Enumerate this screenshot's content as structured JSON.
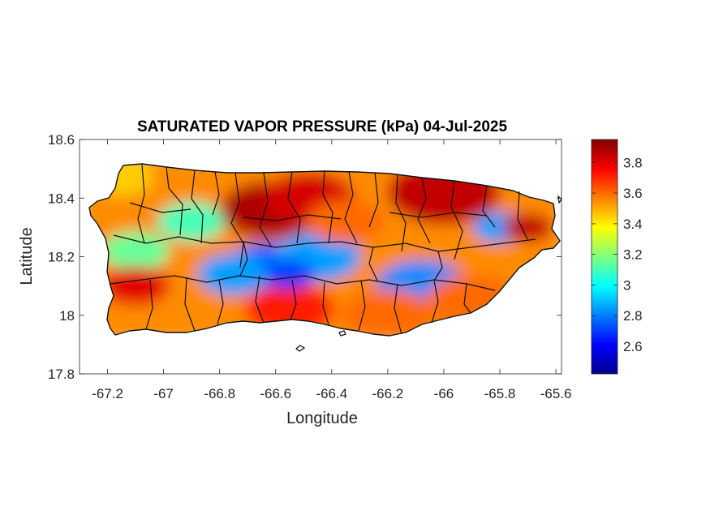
{
  "figure": {
    "title": "SATURATED VAPOR PRESSURE (kPa) 04-Jul-2025"
  },
  "chart_data": {
    "type": "heatmap",
    "title": "SATURATED VAPOR PRESSURE (kPa) 04-Jul-2025",
    "xlabel": "Longitude",
    "ylabel": "Latitude",
    "xlim": [
      -67.3,
      -65.58
    ],
    "ylim": [
      17.8,
      18.6
    ],
    "xticks": [
      -67.2,
      -67,
      -66.8,
      -66.6,
      -66.4,
      -66.2,
      -66,
      -65.8,
      -65.6
    ],
    "xtick_labels": [
      "-67.2",
      "-67",
      "-66.8",
      "-66.6",
      "-66.4",
      "-66.2",
      "-66",
      "-65.8",
      "-65.6"
    ],
    "yticks": [
      17.8,
      18,
      18.2,
      18.4,
      18.6
    ],
    "ytick_labels": [
      "17.8",
      "18",
      "18.2",
      "18.4",
      "18.6"
    ],
    "colorbar": {
      "colormap": "jet",
      "range": [
        2.42,
        3.95
      ],
      "ticks": [
        2.6,
        2.8,
        3,
        3.2,
        3.4,
        3.6,
        3.8
      ],
      "tick_labels": [
        "2.6",
        "2.8",
        "3",
        "3.2",
        "3.4",
        "3.6",
        "3.8"
      ]
    },
    "grid": false,
    "field_samples": [
      {
        "lon": -66.62,
        "lat": 18.16,
        "value": 2.75
      },
      {
        "lon": -66.75,
        "lat": 18.14,
        "value": 2.85
      },
      {
        "lon": -66.45,
        "lat": 18.2,
        "value": 2.85
      },
      {
        "lon": -66.08,
        "lat": 18.1,
        "value": 2.82
      },
      {
        "lon": -65.8,
        "lat": 18.3,
        "value": 2.85
      },
      {
        "lon": -66.9,
        "lat": 18.32,
        "value": 3.1
      },
      {
        "lon": -67.1,
        "lat": 18.22,
        "value": 3.15
      },
      {
        "lon": -66.62,
        "lat": 18.36,
        "value": 3.88
      },
      {
        "lon": -66.48,
        "lat": 18.4,
        "value": 3.82
      },
      {
        "lon": -66.0,
        "lat": 18.42,
        "value": 3.85
      },
      {
        "lon": -65.7,
        "lat": 18.3,
        "value": 3.85
      },
      {
        "lon": -67.1,
        "lat": 18.1,
        "value": 3.8
      },
      {
        "lon": -66.55,
        "lat": 18.02,
        "value": 3.72
      },
      {
        "lon": -66.55,
        "lat": 18.14,
        "value": 2.7
      },
      {
        "lon": -66.35,
        "lat": 18.32,
        "value": 3.6
      },
      {
        "lon": -67.15,
        "lat": 18.47,
        "value": 3.45
      },
      {
        "lon": -66.2,
        "lat": 18.0,
        "value": 3.6
      },
      {
        "lon": -65.9,
        "lat": 18.05,
        "value": 3.6
      }
    ]
  }
}
